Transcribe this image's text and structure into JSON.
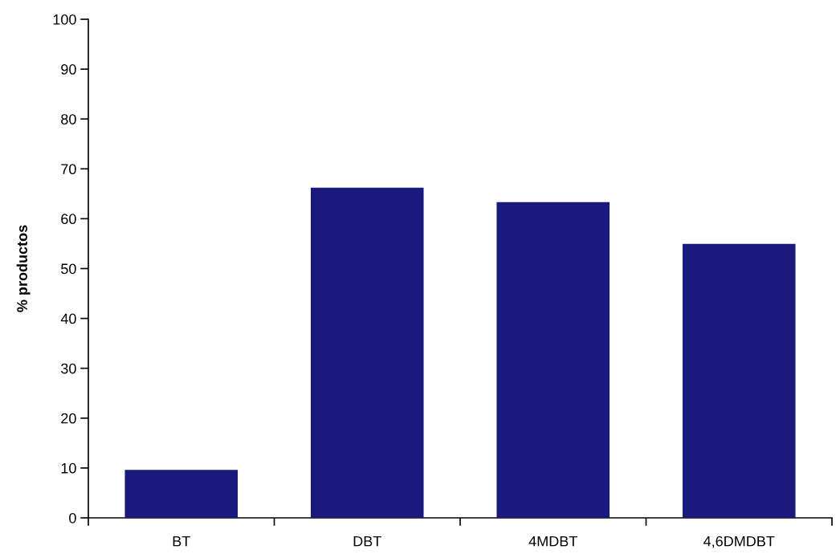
{
  "chart_data": {
    "type": "bar",
    "ylabel": "% productos",
    "categories": [
      "BT",
      "DBT",
      "4MDBT",
      "4,6DMDBT"
    ],
    "values": [
      9.5,
      66.1,
      63.2,
      54.8
    ],
    "color": "#1a1a7c",
    "ylim": [
      0,
      100
    ],
    "yticks": [
      0,
      10,
      20,
      30,
      40,
      50,
      60,
      70,
      80,
      90,
      100
    ],
    "grid": false,
    "legend": false
  }
}
